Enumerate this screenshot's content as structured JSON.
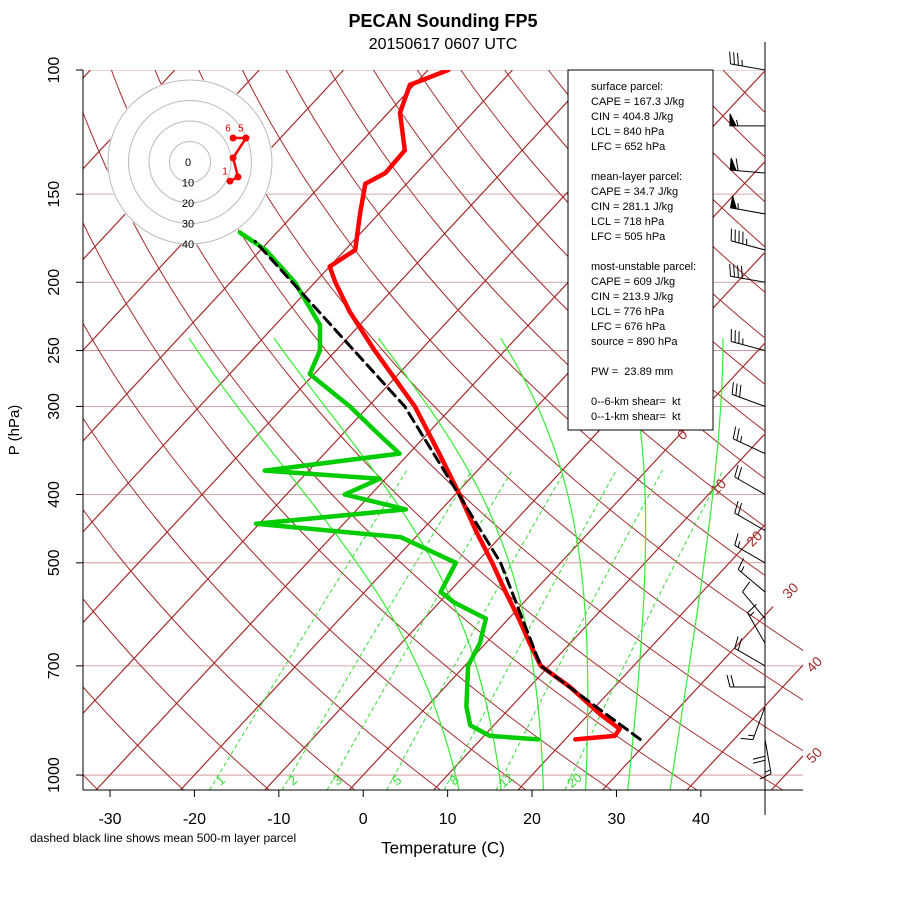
{
  "chart_data": {
    "type": "skewt",
    "title": "PECAN Sounding FP5",
    "subtitle": "20150617 0607 UTC",
    "x_label": "Temperature (C)",
    "y_label": "P (hPa)",
    "note": "dashed black line shows mean 500-m layer parcel",
    "xlim": [
      -33.2,
      52.1
    ],
    "ylim": [
      1050,
      100
    ],
    "xticks": [
      -30,
      -20,
      -10,
      0,
      10,
      20,
      30,
      40
    ],
    "yticks": [
      100,
      150,
      200,
      250,
      300,
      400,
      500,
      700,
      1000
    ],
    "grid": true,
    "series": [
      {
        "color": "#ff0000",
        "pressure": [
          890,
          880,
          860,
          820,
          750,
          700,
          650,
          600,
          550,
          500,
          450,
          400,
          350,
          300,
          250,
          220,
          200,
          190,
          180,
          160,
          145,
          140,
          130,
          115,
          105,
          100
        ],
        "values": [
          21.2,
          25.5,
          25.3,
          21.4,
          14.8,
          9.0,
          5.2,
          1.2,
          -3.3,
          -8.1,
          -13.6,
          -19.5,
          -26.4,
          -34.5,
          -45.4,
          -52.7,
          -57.6,
          -60.0,
          -58.8,
          -62.2,
          -64.9,
          -63.7,
          -63.9,
          -68.6,
          -70.5,
          -67.6
        ]
      },
      {
        "color": "#00cc00",
        "pressure": [
          890,
          880,
          850,
          800,
          700,
          650,
          600,
          570,
          550,
          500,
          460,
          440,
          420,
          400,
          380,
          370,
          350,
          330,
          300,
          270,
          250,
          230,
          200,
          180,
          170
        ],
        "values": [
          16.8,
          10.7,
          7.2,
          4.7,
          0.4,
          -0.7,
          -2.7,
          -8.1,
          -11.0,
          -12.4,
          -21.7,
          -40.4,
          -24.2,
          -33.1,
          -30.7,
          -45.2,
          -31.1,
          -35.4,
          -42.2,
          -50.5,
          -51.9,
          -54.7,
          -62.4,
          -69.4,
          -74.4
        ]
      },
      {
        "color": "#000000",
        "dashed": true,
        "pressure": [
          890,
          700,
          500,
          300,
          175
        ],
        "values": [
          28.9,
          9.0,
          -7.1,
          -35.7,
          -71.6
        ]
      }
    ],
    "isotherm_labels": [
      0,
      10,
      20,
      30,
      40,
      50
    ],
    "mixing_ratio_labels": [
      1,
      2,
      3,
      5,
      8,
      12,
      20
    ],
    "winds": {
      "pressure": [
        100,
        120,
        140,
        160,
        180,
        200,
        250,
        300,
        350,
        400,
        450,
        500,
        550,
        600,
        650,
        700,
        750,
        800,
        850,
        890
      ],
      "direction": [
        280,
        270,
        275,
        280,
        285,
        280,
        285,
        290,
        295,
        300,
        300,
        300,
        310,
        320,
        330,
        300,
        270,
        200,
        180,
        170
      ],
      "speed": [
        35,
        55,
        60,
        55,
        45,
        40,
        35,
        30,
        25,
        20,
        20,
        15,
        15,
        10,
        15,
        20,
        20,
        15,
        20,
        15
      ]
    },
    "hodograph": {
      "rings": [
        0,
        10,
        20,
        30,
        40
      ],
      "u": [
        19.5,
        23.4,
        21,
        27.3,
        21
      ],
      "v": [
        -9.3,
        -7.3,
        2,
        11.7,
        11.7
      ],
      "labels": [
        1,
        null,
        null,
        5,
        6
      ]
    },
    "stats": [
      [
        "surface parcel:",
        "CAPE = 167.3 J/kg",
        "CIN = 404.8 J/kg",
        "LCL = 840 hPa",
        "LFC = 652 hPa"
      ],
      [
        "mean-layer parcel:",
        "CAPE = 34.7 J/kg",
        "CIN = 281.1 J/kg",
        "LCL = 718 hPa",
        "LFC = 505 hPa"
      ],
      [
        "most-unstable parcel:",
        "CAPE = 609 J/kg",
        "CIN = 213.9 J/kg",
        "LCL = 776 hPa",
        "LFC = 676 hPa",
        "source = 890 hPa"
      ],
      [
        "PW =  23.89 mm"
      ],
      [
        "0--6-km shear=  kt",
        "0--1-km shear=  kt"
      ]
    ]
  }
}
